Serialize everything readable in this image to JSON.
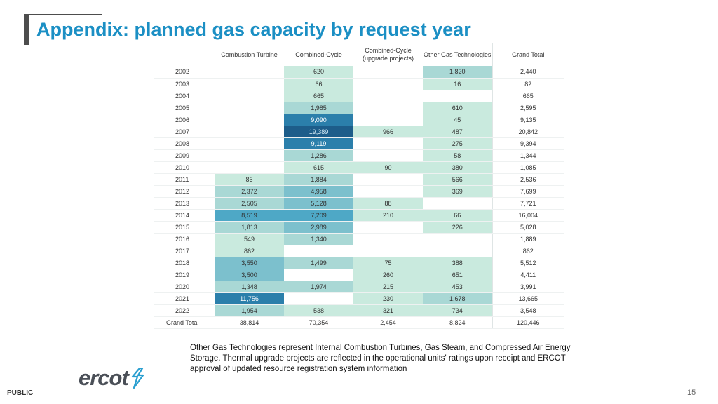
{
  "slide": {
    "title": "Appendix: planned gas capacity by request year",
    "footnote": "Other Gas Technologies represent Internal Combustion Turbines, Gas Steam, and Compressed Air Energy Storage. Thermal upgrade projects are reflected in the operational units' ratings upon receipt and ERCOT approval of updated resource registration system information",
    "classification": "PUBLIC",
    "page_number": "15",
    "logo_text": "ercot"
  },
  "colors": {
    "title": "#1b8fc4",
    "scale": [
      "#c9eade",
      "#a9d8d5",
      "#7cc0cd",
      "#4ea8c6",
      "#2b7fab",
      "#1d5d8a"
    ]
  },
  "chart_data": {
    "type": "heatmap",
    "title": "",
    "columns": [
      "Combustion Turbine",
      "Combined-Cycle",
      "Combined-Cycle (upgrade projects)",
      "Other Gas Technologies",
      "Grand Total"
    ],
    "rows": [
      {
        "year": "2002",
        "values": [
          null,
          "620",
          null,
          "1,820",
          "2,440"
        ]
      },
      {
        "year": "2003",
        "values": [
          null,
          "66",
          null,
          "16",
          "82"
        ]
      },
      {
        "year": "2004",
        "values": [
          null,
          "665",
          null,
          null,
          "665"
        ]
      },
      {
        "year": "2005",
        "values": [
          null,
          "1,985",
          null,
          "610",
          "2,595"
        ]
      },
      {
        "year": "2006",
        "values": [
          null,
          "9,090",
          null,
          "45",
          "9,135"
        ]
      },
      {
        "year": "2007",
        "values": [
          null,
          "19,389",
          "966",
          "487",
          "20,842"
        ]
      },
      {
        "year": "2008",
        "values": [
          null,
          "9,119",
          null,
          "275",
          "9,394"
        ]
      },
      {
        "year": "2009",
        "values": [
          null,
          "1,286",
          null,
          "58",
          "1,344"
        ]
      },
      {
        "year": "2010",
        "values": [
          null,
          "615",
          "90",
          "380",
          "1,085"
        ]
      },
      {
        "year": "2011",
        "values": [
          "86",
          "1,884",
          null,
          "566",
          "2,536"
        ]
      },
      {
        "year": "2012",
        "values": [
          "2,372",
          "4,958",
          null,
          "369",
          "7,699"
        ]
      },
      {
        "year": "2013",
        "values": [
          "2,505",
          "5,128",
          "88",
          null,
          "7,721"
        ]
      },
      {
        "year": "2014",
        "values": [
          "8,519",
          "7,209",
          "210",
          "66",
          "16,004"
        ]
      },
      {
        "year": "2015",
        "values": [
          "1,813",
          "2,989",
          null,
          "226",
          "5,028"
        ]
      },
      {
        "year": "2016",
        "values": [
          "549",
          "1,340",
          null,
          null,
          "1,889"
        ]
      },
      {
        "year": "2017",
        "values": [
          "862",
          null,
          null,
          null,
          "862"
        ]
      },
      {
        "year": "2018",
        "values": [
          "3,550",
          "1,499",
          "75",
          "388",
          "5,512"
        ]
      },
      {
        "year": "2019",
        "values": [
          "3,500",
          null,
          "260",
          "651",
          "4,411"
        ]
      },
      {
        "year": "2020",
        "values": [
          "1,348",
          "1,974",
          "215",
          "453",
          "3,991"
        ]
      },
      {
        "year": "2021",
        "values": [
          "11,756",
          null,
          "230",
          "1,678",
          "13,665"
        ]
      },
      {
        "year": "2022",
        "values": [
          "1,954",
          "538",
          "321",
          "734",
          "3,548"
        ]
      }
    ],
    "total_row": {
      "label": "Grand Total",
      "values": [
        "38,814",
        "70,354",
        "2,454",
        "8,824",
        "120,446"
      ]
    }
  }
}
